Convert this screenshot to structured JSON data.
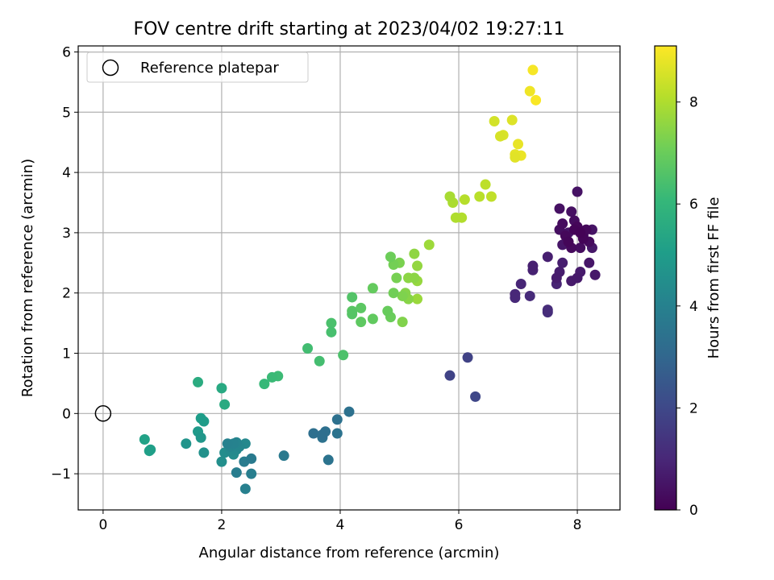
{
  "chart_data": {
    "type": "scatter",
    "title": "FOV centre drift starting at 2023/04/02 19:27:11",
    "xlabel": "Angular distance from reference (arcmin)",
    "ylabel": "Rotation from reference (arcmin)",
    "xlim": [
      -0.42,
      8.72
    ],
    "ylim": [
      -1.6,
      6.1
    ],
    "xticks": [
      0,
      2,
      4,
      6,
      8
    ],
    "yticks": [
      -1,
      0,
      1,
      2,
      3,
      4,
      5,
      6
    ],
    "grid": true,
    "legend": {
      "placement": "top-left",
      "entries": [
        "Reference platepar"
      ]
    },
    "reference_point": {
      "x": 0,
      "y": 0,
      "label": "Reference platepar"
    },
    "colorbar": {
      "label": "Hours from first FF file",
      "colormap": "viridis",
      "range": [
        0,
        9.1
      ],
      "ticks": [
        0,
        2,
        4,
        6,
        8
      ]
    },
    "colormap_stops": [
      "#440154",
      "#482878",
      "#3e4989",
      "#31688e",
      "#26828e",
      "#1f9e89",
      "#35b779",
      "#6ece58",
      "#b5de2b",
      "#fde725"
    ],
    "series": [
      {
        "points": [
          [
            8.05,
            3.0,
            0.05
          ],
          [
            7.95,
            3.05,
            0.08
          ],
          [
            8.1,
            2.9,
            0.1
          ],
          [
            7.85,
            2.85,
            0.12
          ],
          [
            8.0,
            3.1,
            0.15
          ],
          [
            7.8,
            2.95,
            0.18
          ],
          [
            8.15,
            3.05,
            0.2
          ],
          [
            7.9,
            2.75,
            0.22
          ],
          [
            8.2,
            2.85,
            0.25
          ],
          [
            7.75,
            3.15,
            0.28
          ],
          [
            8.05,
            2.75,
            0.3
          ],
          [
            7.95,
            3.2,
            0.32
          ],
          [
            7.7,
            3.05,
            0.35
          ],
          [
            7.9,
            3.35,
            0.38
          ],
          [
            8.1,
            2.95,
            0.4
          ],
          [
            7.7,
            3.4,
            0.42
          ],
          [
            8.0,
            3.68,
            0.45
          ],
          [
            8.25,
            3.05,
            0.48
          ],
          [
            7.85,
            3.0,
            0.5
          ],
          [
            7.75,
            2.8,
            0.52
          ],
          [
            8.2,
            2.5,
            0.55
          ],
          [
            8.3,
            2.3,
            0.58
          ],
          [
            8.25,
            2.75,
            0.6
          ],
          [
            8.0,
            2.25,
            0.62
          ],
          [
            7.9,
            2.2,
            0.65
          ],
          [
            8.05,
            2.35,
            0.68
          ],
          [
            7.65,
            2.25,
            0.7
          ],
          [
            7.7,
            2.35,
            0.72
          ],
          [
            7.75,
            2.5,
            0.75
          ],
          [
            7.5,
            2.6,
            0.78
          ],
          [
            7.25,
            2.45,
            0.8
          ],
          [
            7.25,
            2.38,
            0.85
          ],
          [
            7.65,
            2.15,
            0.9
          ],
          [
            7.05,
            2.15,
            0.95
          ],
          [
            6.95,
            1.98,
            1.0
          ],
          [
            6.95,
            1.92,
            1.05
          ],
          [
            7.2,
            1.95,
            1.1
          ],
          [
            7.5,
            1.72,
            1.15
          ],
          [
            7.5,
            1.68,
            1.2
          ],
          [
            6.15,
            0.93,
            1.8
          ],
          [
            5.85,
            0.63,
            1.85
          ],
          [
            6.28,
            0.28,
            1.95
          ],
          [
            3.55,
            -0.33,
            3.3
          ],
          [
            3.7,
            -0.35,
            3.32
          ],
          [
            3.75,
            -0.3,
            3.35
          ],
          [
            3.95,
            -0.1,
            3.38
          ],
          [
            4.15,
            0.03,
            3.4
          ],
          [
            3.7,
            -0.4,
            3.42
          ],
          [
            3.95,
            -0.33,
            3.45
          ],
          [
            3.8,
            -0.77,
            3.48
          ],
          [
            3.05,
            -0.7,
            3.7
          ],
          [
            2.5,
            -0.75,
            3.75
          ],
          [
            2.38,
            -0.8,
            3.8
          ],
          [
            2.25,
            -0.98,
            3.85
          ],
          [
            2.5,
            -1.0,
            3.9
          ],
          [
            2.4,
            -1.25,
            3.95
          ],
          [
            2.1,
            -0.5,
            4.0
          ],
          [
            2.2,
            -0.5,
            4.05
          ],
          [
            2.25,
            -0.48,
            4.1
          ],
          [
            2.15,
            -0.55,
            4.15
          ],
          [
            2.3,
            -0.55,
            4.2
          ],
          [
            2.4,
            -0.5,
            4.25
          ],
          [
            2.25,
            -0.6,
            4.3
          ],
          [
            2.15,
            -0.62,
            4.35
          ],
          [
            2.2,
            -0.68,
            4.4
          ],
          [
            2.05,
            -0.65,
            4.45
          ],
          [
            2.0,
            -0.8,
            4.5
          ],
          [
            1.7,
            -0.65,
            4.6
          ],
          [
            1.4,
            -0.5,
            4.7
          ],
          [
            1.65,
            -0.4,
            4.8
          ],
          [
            1.6,
            -0.3,
            4.9
          ],
          [
            1.7,
            -0.13,
            5.0
          ],
          [
            1.65,
            -0.08,
            5.05
          ],
          [
            0.8,
            -0.6,
            5.1
          ],
          [
            0.78,
            -0.62,
            5.15
          ],
          [
            0.7,
            -0.43,
            5.2
          ],
          [
            2.0,
            0.42,
            5.5
          ],
          [
            2.05,
            0.15,
            5.55
          ],
          [
            1.6,
            0.52,
            5.6
          ],
          [
            2.72,
            0.49,
            6.1
          ],
          [
            2.85,
            0.6,
            6.15
          ],
          [
            2.95,
            0.62,
            6.2
          ],
          [
            3.45,
            1.08,
            6.3
          ],
          [
            3.65,
            0.87,
            6.35
          ],
          [
            3.85,
            1.35,
            6.4
          ],
          [
            3.85,
            1.5,
            6.45
          ],
          [
            4.05,
            0.97,
            6.5
          ],
          [
            4.2,
            1.93,
            6.6
          ],
          [
            4.2,
            1.65,
            6.65
          ],
          [
            4.2,
            1.7,
            6.7
          ],
          [
            4.35,
            1.75,
            6.75
          ],
          [
            4.35,
            1.52,
            6.8
          ],
          [
            4.55,
            1.57,
            6.85
          ],
          [
            4.55,
            2.08,
            6.9
          ],
          [
            4.8,
            1.7,
            6.95
          ],
          [
            4.85,
            1.6,
            7.0
          ],
          [
            4.85,
            2.6,
            7.05
          ],
          [
            4.9,
            2.0,
            7.1
          ],
          [
            4.9,
            2.47,
            7.15
          ],
          [
            4.95,
            2.25,
            7.2
          ],
          [
            5.0,
            2.5,
            7.25
          ],
          [
            5.05,
            1.95,
            7.3
          ],
          [
            5.05,
            1.52,
            7.35
          ],
          [
            5.1,
            2.0,
            7.4
          ],
          [
            5.15,
            1.9,
            7.45
          ],
          [
            5.25,
            2.25,
            7.5
          ],
          [
            5.25,
            2.65,
            7.55
          ],
          [
            5.3,
            2.45,
            7.6
          ],
          [
            5.3,
            2.2,
            7.65
          ],
          [
            5.3,
            1.9,
            7.7
          ],
          [
            5.5,
            2.8,
            7.75
          ],
          [
            5.15,
            2.25,
            7.5
          ],
          [
            5.85,
            3.6,
            7.9
          ],
          [
            5.9,
            3.5,
            7.95
          ],
          [
            5.95,
            3.25,
            8.0
          ],
          [
            6.05,
            3.25,
            8.05
          ],
          [
            6.1,
            3.55,
            8.1
          ],
          [
            6.35,
            3.6,
            8.15
          ],
          [
            6.45,
            3.8,
            8.2
          ],
          [
            6.55,
            3.6,
            8.25
          ],
          [
            6.6,
            4.85,
            8.5
          ],
          [
            6.7,
            4.6,
            8.55
          ],
          [
            6.75,
            4.62,
            8.6
          ],
          [
            6.9,
            4.87,
            8.65
          ],
          [
            6.95,
            4.25,
            8.7
          ],
          [
            6.95,
            4.3,
            8.75
          ],
          [
            7.0,
            4.47,
            8.8
          ],
          [
            7.05,
            4.28,
            8.85
          ],
          [
            7.2,
            5.35,
            8.9
          ],
          [
            7.25,
            5.7,
            9.0
          ],
          [
            7.3,
            5.2,
            9.05
          ]
        ]
      }
    ]
  }
}
